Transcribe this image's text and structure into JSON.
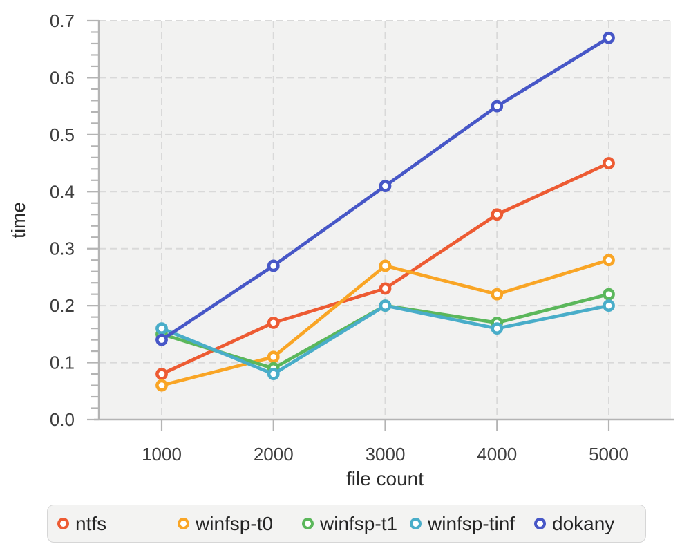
{
  "chart_data": {
    "type": "line",
    "title": "",
    "xlabel": "file count",
    "ylabel": "time",
    "x": [
      1000,
      2000,
      3000,
      4000,
      5000
    ],
    "xticks": [
      1000,
      2000,
      3000,
      4000,
      5000
    ],
    "yticks": [
      0.0,
      0.1,
      0.2,
      0.3,
      0.4,
      0.5,
      0.6,
      0.7
    ],
    "y_minor_step": 0.02,
    "ylim": [
      0,
      0.7
    ],
    "grid": true,
    "legend_position": "bottom",
    "marker": "open-circle",
    "plot_background": "#f2f2f1",
    "grid_color": "#d9d9d9",
    "axis_color": "#b4b4b4",
    "tick_label_color": "#3f3f3f",
    "series": [
      {
        "name": "ntfs",
        "color": "#ED5B33",
        "values": [
          0.08,
          0.17,
          0.23,
          0.36,
          0.45
        ]
      },
      {
        "name": "winfsp-t0",
        "color": "#F9A525",
        "values": [
          0.06,
          0.11,
          0.27,
          0.22,
          0.28
        ]
      },
      {
        "name": "winfsp-t1",
        "color": "#5BB75B",
        "values": [
          0.15,
          0.09,
          0.2,
          0.17,
          0.22
        ]
      },
      {
        "name": "winfsp-tinf",
        "color": "#49ADC9",
        "values": [
          0.16,
          0.08,
          0.2,
          0.16,
          0.2
        ]
      },
      {
        "name": "dokany",
        "color": "#4757C7",
        "values": [
          0.14,
          0.27,
          0.41,
          0.55,
          0.67
        ]
      }
    ]
  }
}
